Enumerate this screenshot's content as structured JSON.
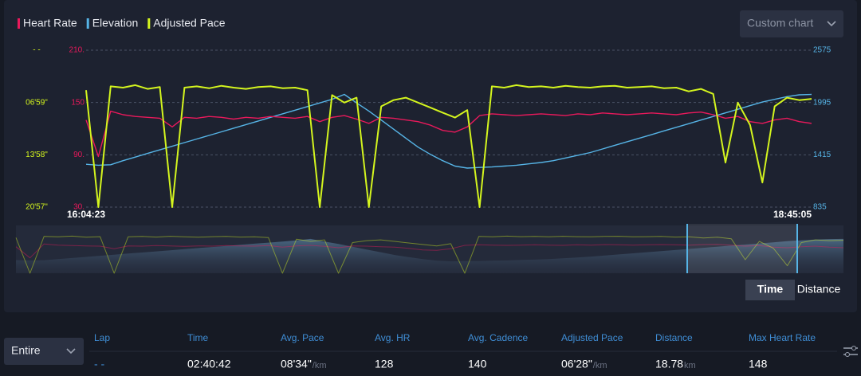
{
  "custom_chart": "Custom chart",
  "chart_data": {
    "type": "line",
    "categories": [
      "16:04:23",
      null,
      null,
      null,
      null,
      null,
      null,
      null,
      null,
      null,
      null,
      null,
      null,
      null,
      null,
      null,
      null,
      null,
      null,
      null,
      null,
      null,
      null,
      null,
      null,
      null,
      null,
      null,
      null,
      null,
      null,
      null,
      null,
      null,
      null,
      null,
      null,
      null,
      null,
      null,
      null,
      null,
      null,
      null,
      null,
      null,
      null,
      null,
      null,
      null,
      null,
      null,
      null,
      null,
      null,
      null,
      null,
      null,
      null,
      "18:45:05"
    ],
    "ylim": [
      30,
      210
    ],
    "yticks": [
      {
        "value": 30,
        "label": "30."
      },
      {
        "value": 90,
        "label": "90."
      },
      150,
      {
        "value": 210,
        "label": "210."
      }
    ],
    "y2lim": [
      835,
      2575
    ],
    "y2ticks": [
      835,
      1415,
      1995,
      2575
    ],
    "y3lim": [
      1257,
      0
    ],
    "y3ticks": [
      {
        "value": 1257,
        "label": "20'57\""
      },
      {
        "value": 838,
        "label": "13'58\""
      },
      {
        "value": 419,
        "label": "06'59\""
      },
      {
        "value": 0,
        "label": "- -"
      }
    ],
    "grid": true,
    "series": [
      {
        "name": "Heart Rate",
        "color": "#e8195b",
        "axis": "y",
        "values": [
          130,
          88,
          140,
          136,
          134,
          133,
          132,
          122,
          133,
          132,
          134,
          133,
          131,
          133,
          132,
          134,
          133,
          132,
          134,
          128,
          133,
          135,
          131,
          126,
          133,
          132,
          130,
          128,
          124,
          118,
          116,
          122,
          135,
          137,
          136,
          135,
          136,
          137,
          136,
          135,
          137,
          136,
          138,
          137,
          136,
          137,
          138,
          137,
          136,
          138,
          139,
          136,
          132,
          134,
          128,
          126,
          130,
          132,
          128,
          126
        ]
      },
      {
        "name": "Elevation",
        "color": "#56b4e6",
        "axis": "y2",
        "values": [
          1310,
          1300,
          1305,
          1350,
          1390,
          1430,
          1470,
          1510,
          1550,
          1590,
          1630,
          1670,
          1710,
          1750,
          1790,
          1830,
          1870,
          1910,
          1950,
          1990,
          2030,
          2085,
          1990,
          1900,
          1800,
          1700,
          1600,
          1500,
          1420,
          1350,
          1290,
          1268,
          1275,
          1280,
          1290,
          1300,
          1315,
          1330,
          1350,
          1380,
          1410,
          1440,
          1480,
          1520,
          1560,
          1600,
          1640,
          1680,
          1720,
          1760,
          1800,
          1840,
          1880,
          1920,
          1960,
          2000,
          2030,
          2060,
          2080,
          2085
        ]
      },
      {
        "name": "Adjusted Pace",
        "color": "#d4f51e",
        "axis": "y3",
        "values": [
          320,
          1257,
          290,
          300,
          280,
          310,
          295,
          1257,
          300,
          290,
          305,
          285,
          300,
          310,
          295,
          290,
          305,
          300,
          320,
          1257,
          360,
          420,
          380,
          1257,
          450,
          400,
          380,
          420,
          460,
          500,
          540,
          480,
          1257,
          290,
          300,
          280,
          295,
          290,
          300,
          285,
          295,
          300,
          290,
          285,
          300,
          295,
          290,
          305,
          300,
          330,
          310,
          350,
          900,
          420,
          600,
          1060,
          450,
          380,
          400,
          390
        ]
      }
    ]
  },
  "toggle": [
    "Time",
    "Distance"
  ],
  "table": {
    "selector": "Entire",
    "headers": [
      "Lap",
      "Time",
      "Avg. Pace",
      "Avg. HR",
      "Avg. Cadence",
      "Adjusted Pace",
      "Distance",
      "Max Heart Rate"
    ],
    "row": [
      {
        "value": "- -"
      },
      {
        "value": "02:40:42"
      },
      {
        "value": "08'34\"",
        "unit": "/km"
      },
      {
        "value": "128"
      },
      {
        "value": "140"
      },
      {
        "value": "06'28\"",
        "unit": "/km"
      },
      {
        "value": "18.78",
        "unit": "km"
      },
      {
        "value": "148"
      }
    ]
  }
}
